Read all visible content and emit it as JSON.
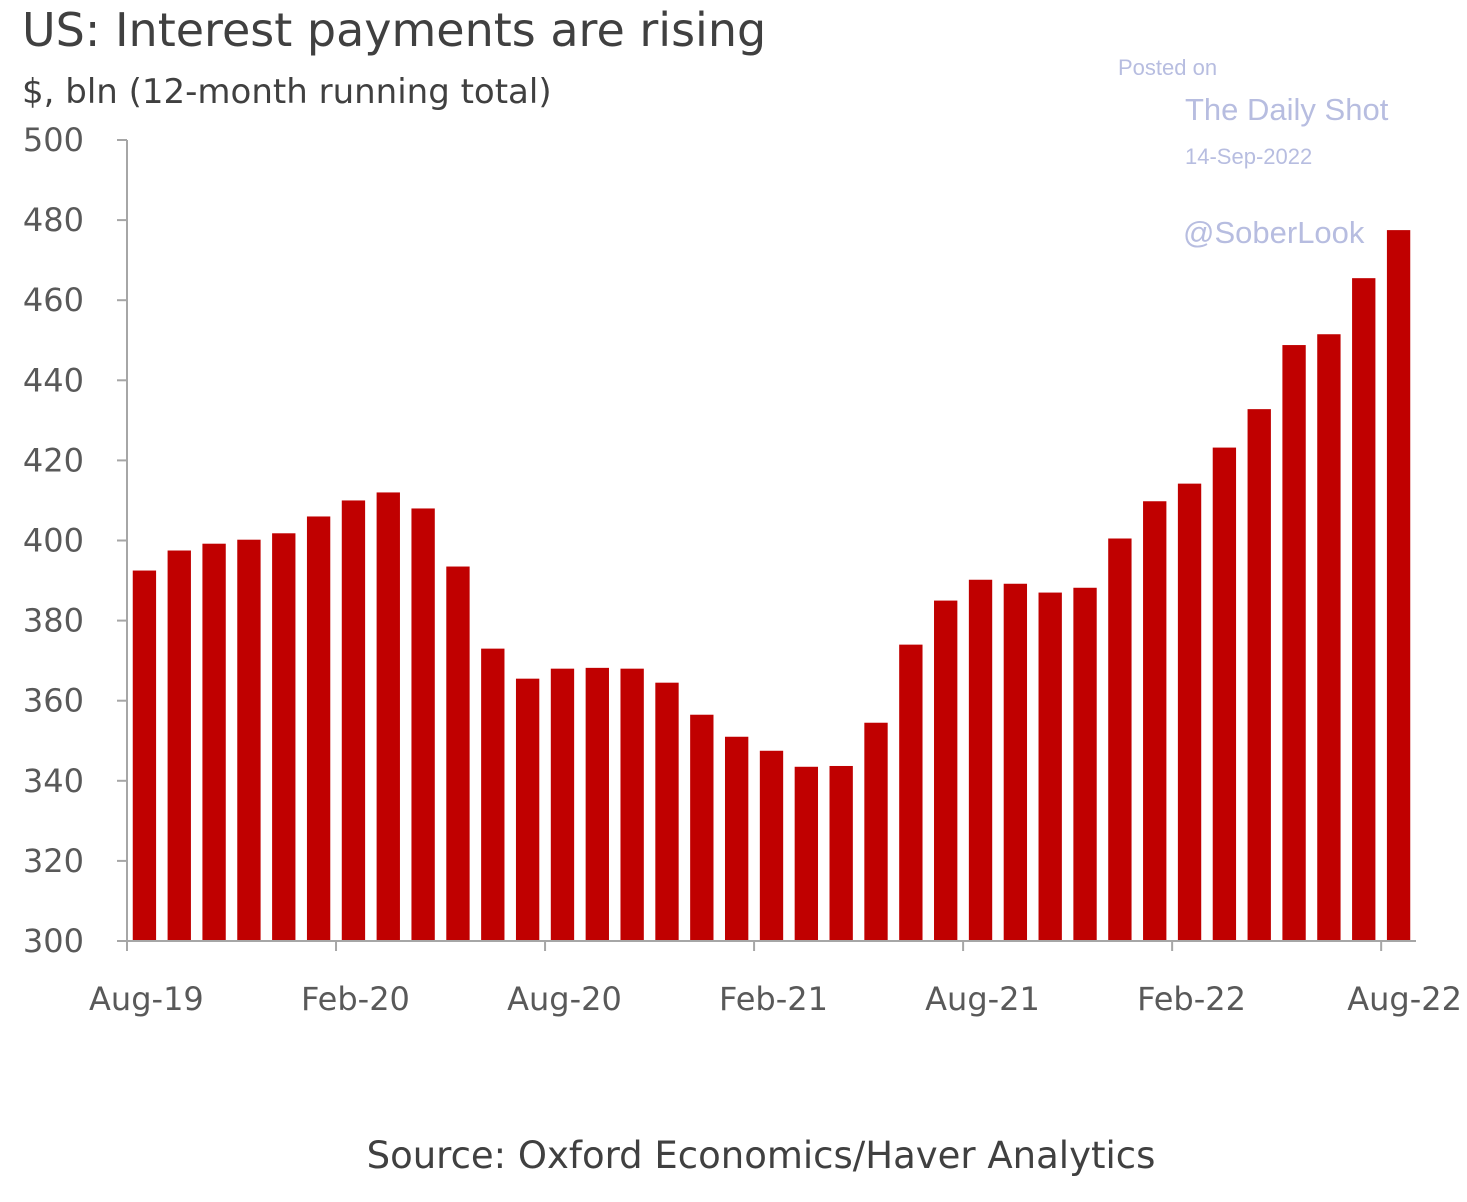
{
  "chart_data": {
    "type": "bar",
    "title": "US: Interest payments are rising",
    "subtitle": "$, bln (12-month running total)",
    "source": "Source: Oxford Economics/Haver Analytics",
    "ylim": [
      300,
      500
    ],
    "yticks": [
      "500",
      "480",
      "460",
      "440",
      "420",
      "400",
      "380",
      "360",
      "340",
      "320",
      "300"
    ],
    "xtick_labels": [
      "Aug-19",
      "Feb-20",
      "Aug-20",
      "Feb-21",
      "Aug-21",
      "Feb-22",
      "Aug-22"
    ],
    "categories": [
      "Aug-19",
      "Sep-19",
      "Oct-19",
      "Nov-19",
      "Dec-19",
      "Jan-20",
      "Feb-20",
      "Mar-20",
      "Apr-20",
      "May-20",
      "Jun-20",
      "Jul-20",
      "Aug-20",
      "Sep-20",
      "Oct-20",
      "Nov-20",
      "Dec-20",
      "Jan-21",
      "Feb-21",
      "Mar-21",
      "Apr-21",
      "May-21",
      "Jun-21",
      "Jul-21",
      "Aug-21",
      "Sep-21",
      "Oct-21",
      "Nov-21",
      "Dec-21",
      "Jan-22",
      "Feb-22",
      "Mar-22",
      "Apr-22",
      "May-22",
      "Jun-22",
      "Jul-22",
      "Aug-22"
    ],
    "values": [
      392.5,
      397.5,
      399.2,
      400.2,
      401.8,
      406.0,
      410.0,
      412.0,
      408.0,
      393.5,
      373.0,
      365.5,
      368.0,
      368.2,
      368.0,
      364.5,
      356.5,
      351.0,
      347.5,
      343.5,
      343.7,
      354.5,
      374.0,
      385.0,
      390.2,
      389.2,
      387.0,
      388.2,
      400.5,
      409.8,
      414.2,
      423.2,
      432.8,
      448.8,
      451.5,
      465.5,
      477.5
    ],
    "bar_color": "#c00000",
    "grid": false
  },
  "watermark": {
    "posted_on": "Posted on",
    "name": "The Daily Shot",
    "date": "14-Sep-2022",
    "handle": "@SoberLook"
  }
}
